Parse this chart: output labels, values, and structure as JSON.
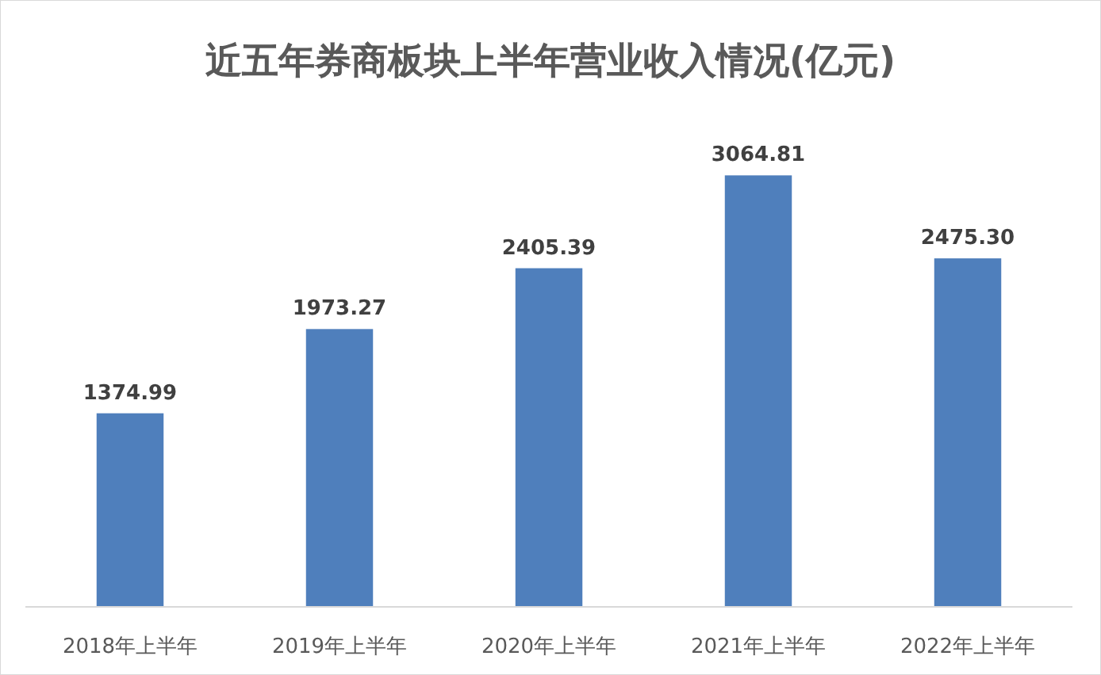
{
  "chart_data": {
    "type": "bar",
    "title": "近五年券商板块上半年营业收入情况(亿元)",
    "categories": [
      "2018年上半年",
      "2019年上半年",
      "2020年上半年",
      "2021年上半年",
      "2022年上半年"
    ],
    "values": [
      1374.99,
      1973.27,
      2405.39,
      3064.81,
      2475.3
    ],
    "color": "#4f7fbc",
    "value_labels": [
      "1374.99",
      "1973.27",
      "2405.39",
      "3064.81",
      "2475.30"
    ]
  }
}
